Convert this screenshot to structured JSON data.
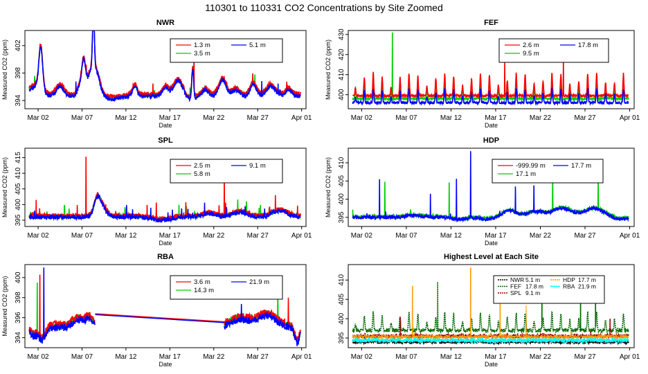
{
  "page_title": "110301  to  110331 CO2 Concentrations by Site Zoomed",
  "colors": {
    "red": "#ff0000",
    "green": "#00cc00",
    "blue": "#0000ff",
    "black": "#000000",
    "orange": "#ff9900",
    "darkgreen": "#006600",
    "darkred": "#990000",
    "cyan": "#00ffff"
  },
  "chart_data": [
    {
      "id": "nwr",
      "type": "line",
      "title": "NWR",
      "xlabel": "Date",
      "ylabel": "Measured CO2 (ppm)",
      "xlim": [
        -0.5,
        31.5
      ],
      "ylim": [
        392.8,
        404.2
      ],
      "x_ticks": [
        {
          "x": 1,
          "label": "Mar 02"
        },
        {
          "x": 6,
          "label": "Mar 07"
        },
        {
          "x": 11,
          "label": "Mar 12"
        },
        {
          "x": 16,
          "label": "Mar 17"
        },
        {
          "x": 21,
          "label": "Mar 22"
        },
        {
          "x": 26,
          "label": "Mar 27"
        },
        {
          "x": 31,
          "label": "Apr 01"
        }
      ],
      "y_ticks": [
        394,
        398,
        402
      ],
      "legend": [
        {
          "label": "1.3 m",
          "color": "#ff0000"
        },
        {
          "label": "5.1 m",
          "color": "#0000ff"
        },
        {
          "label": "3.5 m",
          "color": "#00cc00"
        }
      ],
      "base": 394.6,
      "noise": 0.3,
      "segments": [
        [
          0,
          30.9
        ]
      ],
      "bumps": [
        [
          0.7,
          1.5,
          1.0
        ],
        [
          1.3,
          6.2,
          0.3
        ],
        [
          3.5,
          1.5,
          0.6
        ],
        [
          5.8,
          1.6,
          0.4
        ],
        [
          6.2,
          4.5,
          0.3
        ],
        [
          6.9,
          2.6,
          0.5
        ],
        [
          7.3,
          8.0,
          0.15
        ],
        [
          7.6,
          3.5,
          0.6
        ],
        [
          9.5,
          -0.4,
          1.2
        ],
        [
          12,
          1.4,
          0.4
        ],
        [
          15.5,
          1.2,
          0.5
        ],
        [
          17,
          2.5,
          0.8
        ],
        [
          18,
          -0.7,
          1.0
        ],
        [
          18.6,
          4.5,
          0.15
        ],
        [
          20,
          1.0,
          0.5
        ],
        [
          22,
          2.4,
          0.6
        ],
        [
          23.5,
          0.9,
          0.6
        ],
        [
          25.5,
          1.8,
          0.5
        ],
        [
          27.5,
          1.5,
          0.7
        ],
        [
          29.5,
          1.0,
          0.5
        ]
      ],
      "series": [
        {
          "name": "3.5 m",
          "color": "#00cc00",
          "offset": 0.2,
          "spike_mult": 1.1
        },
        {
          "name": "1.3 m",
          "color": "#ff0000",
          "offset": 0.35,
          "spike_mult": 1.15,
          "extra": [
            [
              18.75,
              402.0
            ]
          ]
        },
        {
          "name": "5.1 m",
          "color": "#0000ff",
          "offset": 0,
          "spike_mult": 1.0
        }
      ]
    },
    {
      "id": "fef",
      "type": "line",
      "title": "FEF",
      "xlabel": "Date",
      "ylabel": "Measured CO2 (ppm)",
      "xlim": [
        -0.5,
        31.5
      ],
      "ylim": [
        393,
        432
      ],
      "x_ticks": [
        {
          "x": 1,
          "label": "Mar 02"
        },
        {
          "x": 6,
          "label": "Mar 07"
        },
        {
          "x": 11,
          "label": "Mar 12"
        },
        {
          "x": 16,
          "label": "Mar 17"
        },
        {
          "x": 21,
          "label": "Mar 22"
        },
        {
          "x": 26,
          "label": "Mar 27"
        },
        {
          "x": 31,
          "label": "Apr 01"
        }
      ],
      "y_ticks": [
        400,
        410,
        420,
        430
      ],
      "legend": [
        {
          "label": "2.6 m",
          "color": "#ff0000"
        },
        {
          "label": "17.8 m",
          "color": "#0000ff"
        },
        {
          "label": "9.5 m",
          "color": "#00cc00"
        }
      ],
      "base": 396,
      "noise": 0.6,
      "segments": [
        [
          0,
          30.9
        ]
      ],
      "daily": true,
      "daily_amp": 6,
      "bumps": [],
      "series": [
        {
          "name": "9.5 m",
          "color": "#00cc00",
          "offset": 2,
          "spike_mult": 1.25,
          "extra": [
            [
              4.45,
              431.0
            ]
          ]
        },
        {
          "name": "2.6 m",
          "color": "#ff0000",
          "offset": 3.5,
          "spike_mult": 1.6,
          "extra": [
            [
              23.6,
              420.0
            ],
            [
              17.0,
              418.0
            ]
          ]
        },
        {
          "name": "17.8 m",
          "color": "#0000ff",
          "offset": 0,
          "spike_mult": 1.0
        }
      ]
    },
    {
      "id": "spl",
      "type": "line",
      "title": "SPL",
      "xlabel": "Date",
      "ylabel": "Measured CO2 (ppm)",
      "xlim": [
        -0.5,
        31.5
      ],
      "ylim": [
        393,
        418
      ],
      "x_ticks": [
        {
          "x": 1,
          "label": "Mar 02"
        },
        {
          "x": 6,
          "label": "Mar 07"
        },
        {
          "x": 11,
          "label": "Mar 12"
        },
        {
          "x": 16,
          "label": "Mar 17"
        },
        {
          "x": 21,
          "label": "Mar 22"
        },
        {
          "x": 26,
          "label": "Mar 27"
        },
        {
          "x": 31,
          "label": "Apr 01"
        }
      ],
      "y_ticks": [
        395,
        400,
        405,
        410,
        415
      ],
      "legend": [
        {
          "label": "2.5 m",
          "color": "#ff0000"
        },
        {
          "label": "9.1 m",
          "color": "#0000ff"
        },
        {
          "label": "5.8 m",
          "color": "#00cc00"
        }
      ],
      "base": 396,
      "noise": 0.7,
      "segments": [
        [
          0,
          30.9
        ]
      ],
      "spiky": true,
      "bumps": [
        [
          7.7,
          5.0,
          0.5
        ],
        [
          8.3,
          3.0,
          0.7
        ],
        [
          15,
          -1.0,
          1.5
        ],
        [
          20.5,
          1.0,
          1.0
        ],
        [
          24,
          1.5,
          1.2
        ],
        [
          28.5,
          2.0,
          1.2
        ]
      ],
      "series": [
        {
          "name": "5.8 m",
          "color": "#00cc00",
          "offset": 0.3,
          "spike_mult": 1.2
        },
        {
          "name": "2.5 m",
          "color": "#ff0000",
          "offset": 0.5,
          "spike_mult": 1.3,
          "extra": [
            [
              6.45,
              415.3
            ],
            [
              22.2,
              410.5
            ],
            [
              0.8,
              401.5
            ]
          ]
        },
        {
          "name": "9.1 m",
          "color": "#0000ff",
          "offset": 0,
          "spike_mult": 1.0
        }
      ]
    },
    {
      "id": "hdp",
      "type": "line",
      "title": "HDP",
      "xlabel": "Date",
      "ylabel": "Measured CO2 (ppm)",
      "xlim": [
        -0.5,
        31.5
      ],
      "ylim": [
        392.5,
        414
      ],
      "x_ticks": [
        {
          "x": 1,
          "label": "Mar 02"
        },
        {
          "x": 6,
          "label": "Mar 07"
        },
        {
          "x": 11,
          "label": "Mar 12"
        },
        {
          "x": 16,
          "label": "Mar 17"
        },
        {
          "x": 21,
          "label": "Mar 22"
        },
        {
          "x": 26,
          "label": "Mar 27"
        },
        {
          "x": 31,
          "label": "Apr 01"
        }
      ],
      "y_ticks": [
        395,
        400,
        405,
        410
      ],
      "legend": [
        {
          "label": "-999.99 m",
          "color": "#ff0000"
        },
        {
          "label": "17.7 m",
          "color": "#0000ff"
        },
        {
          "label": "17.1 m",
          "color": "#00cc00"
        }
      ],
      "base": 395,
      "noise": 0.5,
      "segments": [
        [
          0,
          30.9
        ]
      ],
      "bumps": [
        [
          7,
          0.5,
          1.5
        ],
        [
          12,
          -0.6,
          1.2
        ],
        [
          15,
          -0.5,
          1.0
        ],
        [
          17.5,
          2.0,
          1.0
        ],
        [
          20.5,
          1.5,
          1.5
        ],
        [
          23.5,
          2.5,
          1.5
        ],
        [
          27,
          2.5,
          1.5
        ],
        [
          30,
          -0.5,
          1.0
        ]
      ],
      "series": [
        {
          "name": "17.1 m",
          "color": "#00cc00",
          "offset": 0.2,
          "spike_mult": 1.1,
          "extra": [
            [
              22.4,
              408.0
            ],
            [
              27.5,
              407.2
            ],
            [
              3.6,
              404.8
            ],
            [
              10.8,
              404.6
            ]
          ]
        },
        {
          "name": "17.7 m",
          "color": "#0000ff",
          "offset": 0,
          "spike_mult": 1.0,
          "extra": [
            [
              13.2,
              413.2
            ],
            [
              3.0,
              405.5
            ],
            [
              11.6,
              405.6
            ],
            [
              8.7,
              401.5
            ],
            [
              18.2,
              403.5
            ],
            [
              20.3,
              403.8
            ]
          ]
        }
      ]
    },
    {
      "id": "rba",
      "type": "line",
      "title": "RBA",
      "xlabel": "Date",
      "ylabel": "Measured CO2 (ppm)",
      "xlim": [
        -0.5,
        31.5
      ],
      "ylim": [
        393,
        401.3
      ],
      "x_ticks": [
        {
          "x": 1,
          "label": "Mar 02"
        },
        {
          "x": 6,
          "label": "Mar 07"
        },
        {
          "x": 11,
          "label": "Mar 12"
        },
        {
          "x": 16,
          "label": "Mar 17"
        },
        {
          "x": 21,
          "label": "Mar 22"
        },
        {
          "x": 26,
          "label": "Mar 27"
        },
        {
          "x": 31,
          "label": "Apr 01"
        }
      ],
      "y_ticks": [
        394,
        396,
        398,
        400
      ],
      "legend": [
        {
          "label": "3.6 m",
          "color": "#ff0000"
        },
        {
          "label": "21.9 m",
          "color": "#0000ff"
        },
        {
          "label": "14.3 m",
          "color": "#00cc00"
        }
      ],
      "base": 395,
      "noise": 0.35,
      "segments": [
        [
          0,
          7.5
        ],
        [
          22.2,
          30.9
        ]
      ],
      "gap": {
        "from": [
          7.5,
          396.3
        ],
        "to": [
          22.2,
          395.5
        ]
      },
      "bumps": [
        [
          0.5,
          -0.8,
          0.6
        ],
        [
          1.5,
          -1.2,
          0.5
        ],
        [
          5.5,
          0.8,
          0.8
        ],
        [
          6.8,
          0.9,
          0.6
        ],
        [
          24,
          0.8,
          1.5
        ],
        [
          27,
          1.2,
          1.5
        ],
        [
          30.5,
          -1.5,
          0.4
        ]
      ],
      "series": [
        {
          "name": "14.3 m",
          "color": "#00cc00",
          "offset": 0.2,
          "spike_mult": 1.1,
          "extra": [
            [
              0.9,
              399.5
            ],
            [
              28.3,
              398.8
            ]
          ]
        },
        {
          "name": "3.6 m",
          "color": "#ff0000",
          "offset": 0.3,
          "spike_mult": 1.2,
          "extra": [
            [
              1.2,
              400.3
            ],
            [
              29.5,
              398.0
            ]
          ]
        },
        {
          "name": "21.9 m",
          "color": "#0000ff",
          "offset": 0,
          "spike_mult": 1.0,
          "extra": [
            [
              1.65,
              401.0
            ]
          ]
        }
      ]
    },
    {
      "id": "highest",
      "type": "line",
      "title": "Highest Level at Each Site",
      "xlabel": "Date",
      "ylabel": "",
      "xlim": [
        -0.5,
        31.5
      ],
      "ylim": [
        392.5,
        414
      ],
      "x_ticks": [
        {
          "x": 1,
          "label": "Mar 02"
        },
        {
          "x": 6,
          "label": "Mar 07"
        },
        {
          "x": 11,
          "label": "Mar 12"
        },
        {
          "x": 16,
          "label": "Mar 17"
        },
        {
          "x": 21,
          "label": "Mar 22"
        },
        {
          "x": 26,
          "label": "Mar 27"
        },
        {
          "x": 31,
          "label": "Apr 01"
        }
      ],
      "y_ticks": [
        395,
        400,
        405,
        410
      ],
      "legend": [
        {
          "label": "NWR",
          "height": "5.1 m",
          "color": "#000000"
        },
        {
          "label": "HDP",
          "height": "17.7 m",
          "color": "#ff9900"
        },
        {
          "label": "FEF",
          "height": "17.8 m",
          "color": "#006600"
        },
        {
          "label": "RBA",
          "height": "21.9 m",
          "color": "#00ffff"
        },
        {
          "label": "SPL",
          "height": "9.1 m",
          "color": "#990000"
        }
      ],
      "base": 395,
      "noise": 0.5,
      "segments": [
        [
          0,
          30.9
        ]
      ],
      "bumps": [],
      "series": [
        {
          "name": "FEF",
          "color": "#006600",
          "offset": 2,
          "spike_mult": 1.0,
          "daily": true,
          "daily_amp": 4,
          "extra": [
            [
              9.5,
              409.5
            ],
            [
              21.2,
              407.0
            ],
            [
              25.5,
              407.5
            ],
            [
              27.2,
              405.0
            ]
          ]
        },
        {
          "name": "SPL",
          "color": "#990000",
          "offset": 0.5,
          "spike_mult": 1.0,
          "extra": [
            [
              5.3,
              400.5
            ],
            [
              28.8,
              400.0
            ]
          ]
        },
        {
          "name": "HDP",
          "color": "#ff9900",
          "offset": 0.3,
          "spike_mult": 1.0,
          "extra": [
            [
              13.2,
              413.2
            ],
            [
              6.7,
              408.5
            ],
            [
              16.5,
              404.5
            ],
            [
              19.4,
              403.5
            ]
          ]
        },
        {
          "name": "NWR",
          "color": "#000000",
          "offset": -1,
          "spike_mult": 0.6
        },
        {
          "name": "RBA",
          "color": "#00ffff",
          "offset": -0.6,
          "spike_mult": 0.5
        }
      ]
    }
  ]
}
